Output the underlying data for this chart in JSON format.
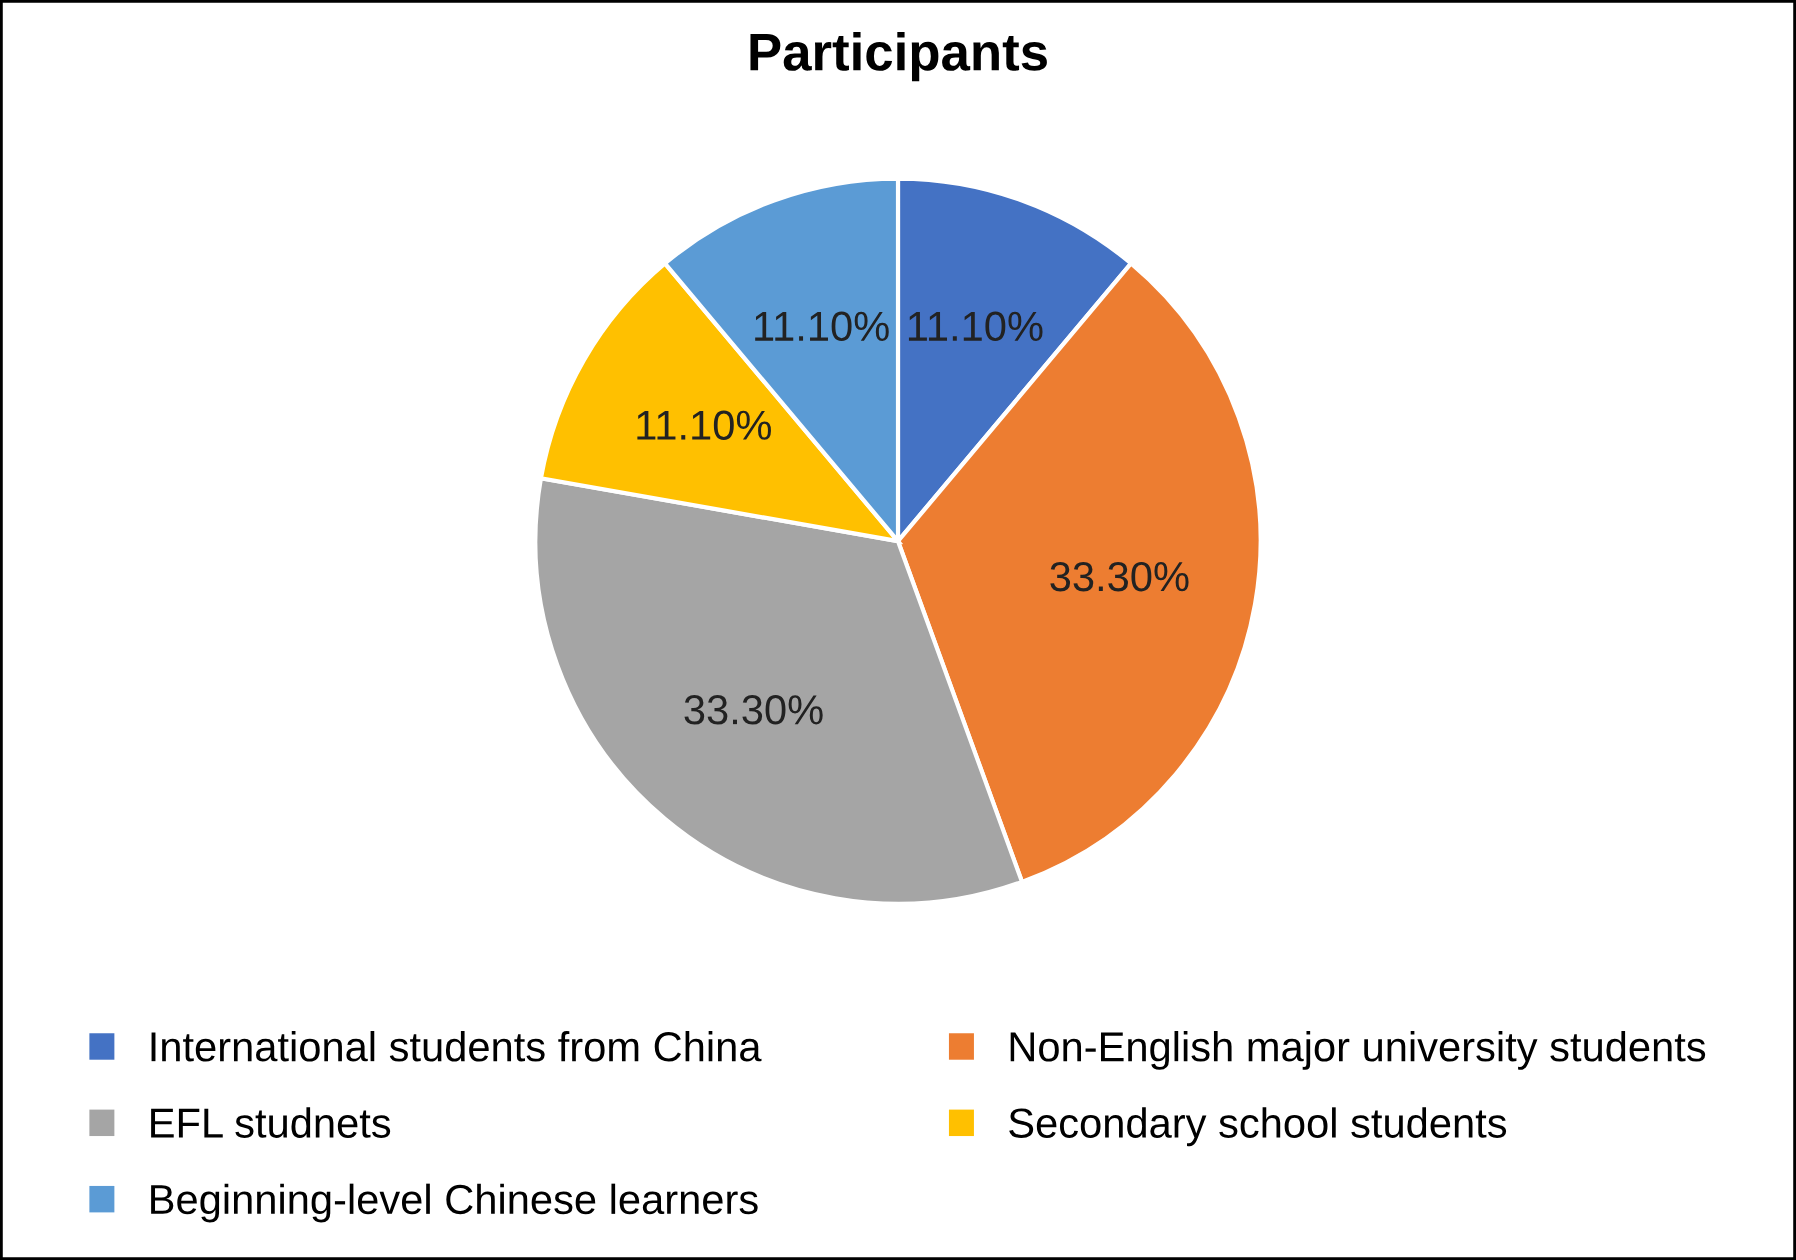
{
  "chart_data": {
    "type": "pie",
    "title": "Participants",
    "categories": [
      "International students from China",
      "Non-English major university students",
      "EFL studnets",
      "Secondary school students",
      "Beginning-level Chinese learners"
    ],
    "values": [
      11.1,
      33.3,
      33.3,
      11.1,
      11.1
    ],
    "value_labels": [
      "11.10%",
      "33.30%",
      "33.30%",
      "11.10%",
      "11.10%"
    ],
    "colors": [
      "#4472c4",
      "#ed7d31",
      "#a5a5a5",
      "#ffc000",
      "#5b9bd5"
    ],
    "legend": "bottom"
  }
}
